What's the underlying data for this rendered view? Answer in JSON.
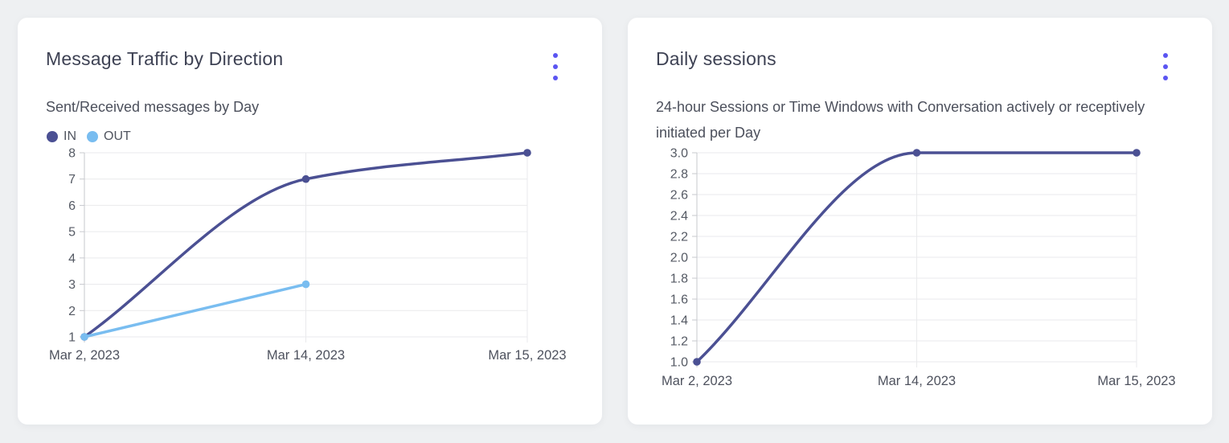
{
  "page": {
    "background_color": "#eef0f2",
    "card_background": "#ffffff",
    "menu_icon_color": "#5b55f2"
  },
  "cards": [
    {
      "menu_tooltip": "menu"
    },
    {
      "menu_tooltip": "menu"
    }
  ],
  "chart_data": [
    {
      "type": "line",
      "title": "Message Traffic by Direction",
      "subtitle": "Sent/Received messages by Day",
      "x_categories": [
        "Mar 2, 2023",
        "Mar 14, 2023",
        "Mar 15, 2023"
      ],
      "series": [
        {
          "name": "IN",
          "color": "#4b5093",
          "values": [
            1,
            7,
            8
          ]
        },
        {
          "name": "OUT",
          "color": "#79bdf0",
          "values": [
            1,
            3,
            null
          ]
        }
      ],
      "ylim": [
        1,
        8
      ],
      "ytick_labels": [
        "1",
        "2",
        "3",
        "4",
        "5",
        "6",
        "7",
        "8"
      ],
      "legend_position": "top-left",
      "grid": true,
      "curve": "monotone"
    },
    {
      "type": "line",
      "title": "Daily sessions",
      "subtitle": "24-hour Sessions or Time Windows with Conversation actively or receptively initiated per Day",
      "x_categories": [
        "Mar 2, 2023",
        "Mar 14, 2023",
        "Mar 15, 2023"
      ],
      "series": [
        {
          "name": "sessions",
          "color": "#4b5093",
          "values": [
            1,
            3,
            3
          ]
        }
      ],
      "ylim": [
        1,
        3
      ],
      "ytick_labels": [
        "1.0",
        "1.2",
        "1.4",
        "1.6",
        "1.8",
        "2.0",
        "2.2",
        "2.4",
        "2.6",
        "2.8",
        "3.0"
      ],
      "legend_position": "none",
      "grid": true,
      "curve": "monotone"
    }
  ],
  "chart_style": {
    "grid_color": "#e9eaec",
    "axis_color": "#c7c9ce",
    "tick_label_color": "#555a64",
    "x_label_color": "#4e525e"
  }
}
